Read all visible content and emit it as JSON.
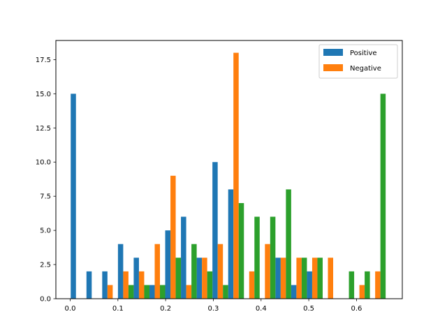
{
  "chart_data": {
    "type": "bar",
    "title": "",
    "xlabel": "",
    "ylabel": "",
    "xlim": [
      -0.03,
      0.696
    ],
    "ylim": [
      0,
      18.9
    ],
    "x_ticks": [
      0.0,
      0.1,
      0.2,
      0.3,
      0.4,
      0.5,
      0.6
    ],
    "x_tick_labels": [
      "0.0",
      "0.1",
      "0.2",
      "0.3",
      "0.4",
      "0.5",
      "0.6"
    ],
    "y_ticks": [
      0,
      2.5,
      5,
      7.5,
      10,
      12.5,
      15,
      17.5
    ],
    "y_tick_labels": [
      "0.0",
      "2.5",
      "5.0",
      "7.5",
      "10.0",
      "12.5",
      "15.0",
      "17.5"
    ],
    "grid": false,
    "legend_position": "top-right",
    "bin_centers": [
      0.0066,
      0.0396,
      0.0726,
      0.1056,
      0.1386,
      0.1716,
      0.2046,
      0.2376,
      0.2706,
      0.3036,
      0.3366,
      0.3696,
      0.4026,
      0.4356,
      0.4686,
      0.5016,
      0.5346,
      0.5676,
      0.6006,
      0.6336
    ],
    "bar_width": 0.011,
    "series": [
      {
        "name": "Positive",
        "color": "#1f77b4",
        "offset_index": 0,
        "values": [
          15,
          2,
          2,
          4,
          3,
          1,
          5,
          6,
          3,
          10,
          8,
          0,
          0,
          3,
          1,
          2,
          0,
          0,
          0,
          0
        ]
      },
      {
        "name": "Negative",
        "color": "#ff7f0e",
        "offset_index": 1,
        "values": [
          0,
          0,
          1,
          2,
          2,
          4,
          9,
          1,
          3,
          4,
          18,
          2,
          4,
          3,
          3,
          3,
          3,
          0,
          1,
          2
        ]
      },
      {
        "name": "",
        "color": "#2ca02c",
        "offset_index": 2,
        "values": [
          0,
          0,
          0,
          1,
          1,
          1,
          3,
          4,
          2,
          1,
          7,
          6,
          6,
          8,
          3,
          3,
          0,
          2,
          2,
          15
        ]
      }
    ]
  }
}
